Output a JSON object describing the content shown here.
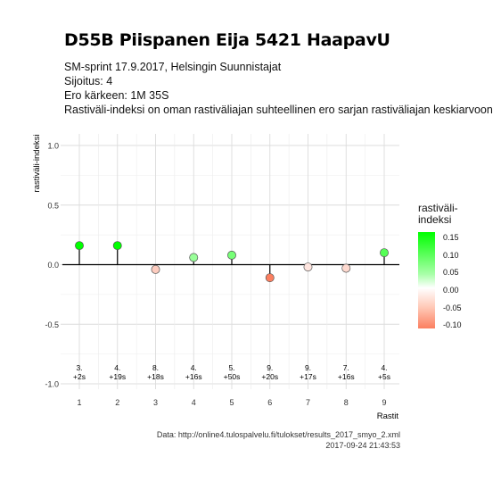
{
  "title": "D55B Piispanen Eija 5421 HaapavU",
  "subtitle_lines": [
    "SM-sprint 17.9.2017, Helsingin Suunnistajat",
    "Sijoitus: 4",
    "Ero kärkeen: 1M 35S",
    "Rastiväli-indeksi on oman rastiväliajan suhteellinen ero sarjan rastiväliajan keskiarvoon"
  ],
  "legend": {
    "title_lines": [
      "rastiväli-",
      "indeksi"
    ],
    "ticks": [
      "0.15",
      "0.10",
      "0.05",
      "0.00",
      "-0.05",
      "-0.10"
    ]
  },
  "caption": {
    "source": "Data: http://online4.tulospalvelu.fi/tulokset/results_2017_smyo_2.xml",
    "timestamp": "2017-09-24 21:43:53"
  },
  "colors": {
    "positive": "#00ff00",
    "zero": "#ffffff",
    "negative": "#fb7f60",
    "grid": "#dcdcdc"
  },
  "chart_data": {
    "type": "scatter",
    "style": "lollipop",
    "xlabel": "Rastit",
    "ylabel": "rastiväli-indeksi",
    "x_ticks": [
      "1",
      "2",
      "3",
      "4",
      "5",
      "6",
      "7",
      "8",
      "9"
    ],
    "y_ticks": [
      "1.0",
      "0.5",
      "0.0",
      "-0.5",
      "-1.0"
    ],
    "xlim": [
      0.5,
      9.4
    ],
    "ylim": [
      -1.0,
      1.0
    ],
    "grid": true,
    "legend_position": "right",
    "x": [
      1,
      2,
      3,
      4,
      5,
      6,
      7,
      8,
      9
    ],
    "values": [
      0.16,
      0.16,
      -0.04,
      0.06,
      0.08,
      -0.11,
      -0.02,
      -0.03,
      0.1
    ],
    "annotations": [
      {
        "x": 1,
        "rank": "3.",
        "diff": "+2s"
      },
      {
        "x": 2,
        "rank": "4.",
        "diff": "+19s"
      },
      {
        "x": 3,
        "rank": "8.",
        "diff": "+18s"
      },
      {
        "x": 4,
        "rank": "4.",
        "diff": "+16s"
      },
      {
        "x": 5,
        "rank": "5.",
        "diff": "+50s"
      },
      {
        "x": 6,
        "rank": "9.",
        "diff": "+20s"
      },
      {
        "x": 7,
        "rank": "9.",
        "diff": "+17s"
      },
      {
        "x": 8,
        "rank": "7.",
        "diff": "+16s"
      },
      {
        "x": 9,
        "rank": "4.",
        "diff": "+5s"
      }
    ],
    "color_scale": {
      "min": -0.1,
      "max": 0.15
    }
  }
}
